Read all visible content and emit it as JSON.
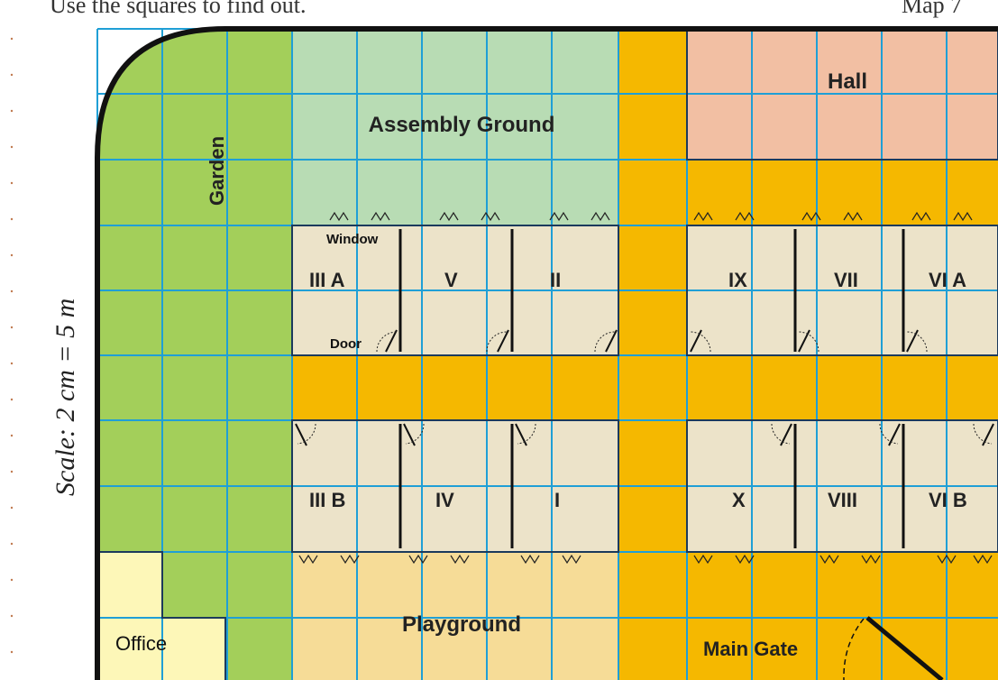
{
  "header": {
    "left_text": "Use the squares to find out.",
    "right_text": "Map 7"
  },
  "scale_label": "Scale: 2 cm = 5 m",
  "areas": {
    "garden": "Garden",
    "assembly_ground": "Assembly Ground",
    "hall": "Hall",
    "playground": "Playground",
    "office": "Office",
    "main_gate": "Main Gate"
  },
  "legend_labels": {
    "window": "Window",
    "door": "Door"
  },
  "classrooms_top": [
    "III A",
    "V",
    "II",
    "IX",
    "VII",
    "VI A"
  ],
  "classrooms_bottom": [
    "III B",
    "IV",
    "I",
    "X",
    "VIII",
    "VI B"
  ],
  "colors": {
    "grid_line": "#1f9fd6",
    "garden_green": "#a3cf5a",
    "assembly_green": "#b8dcb4",
    "hall_pink": "#f2bfa3",
    "corridor_orange": "#f5b800",
    "classroom_beige": "#ece3c9",
    "playground_tan": "#f6dc97",
    "office_yellow": "#fdf7b8"
  }
}
